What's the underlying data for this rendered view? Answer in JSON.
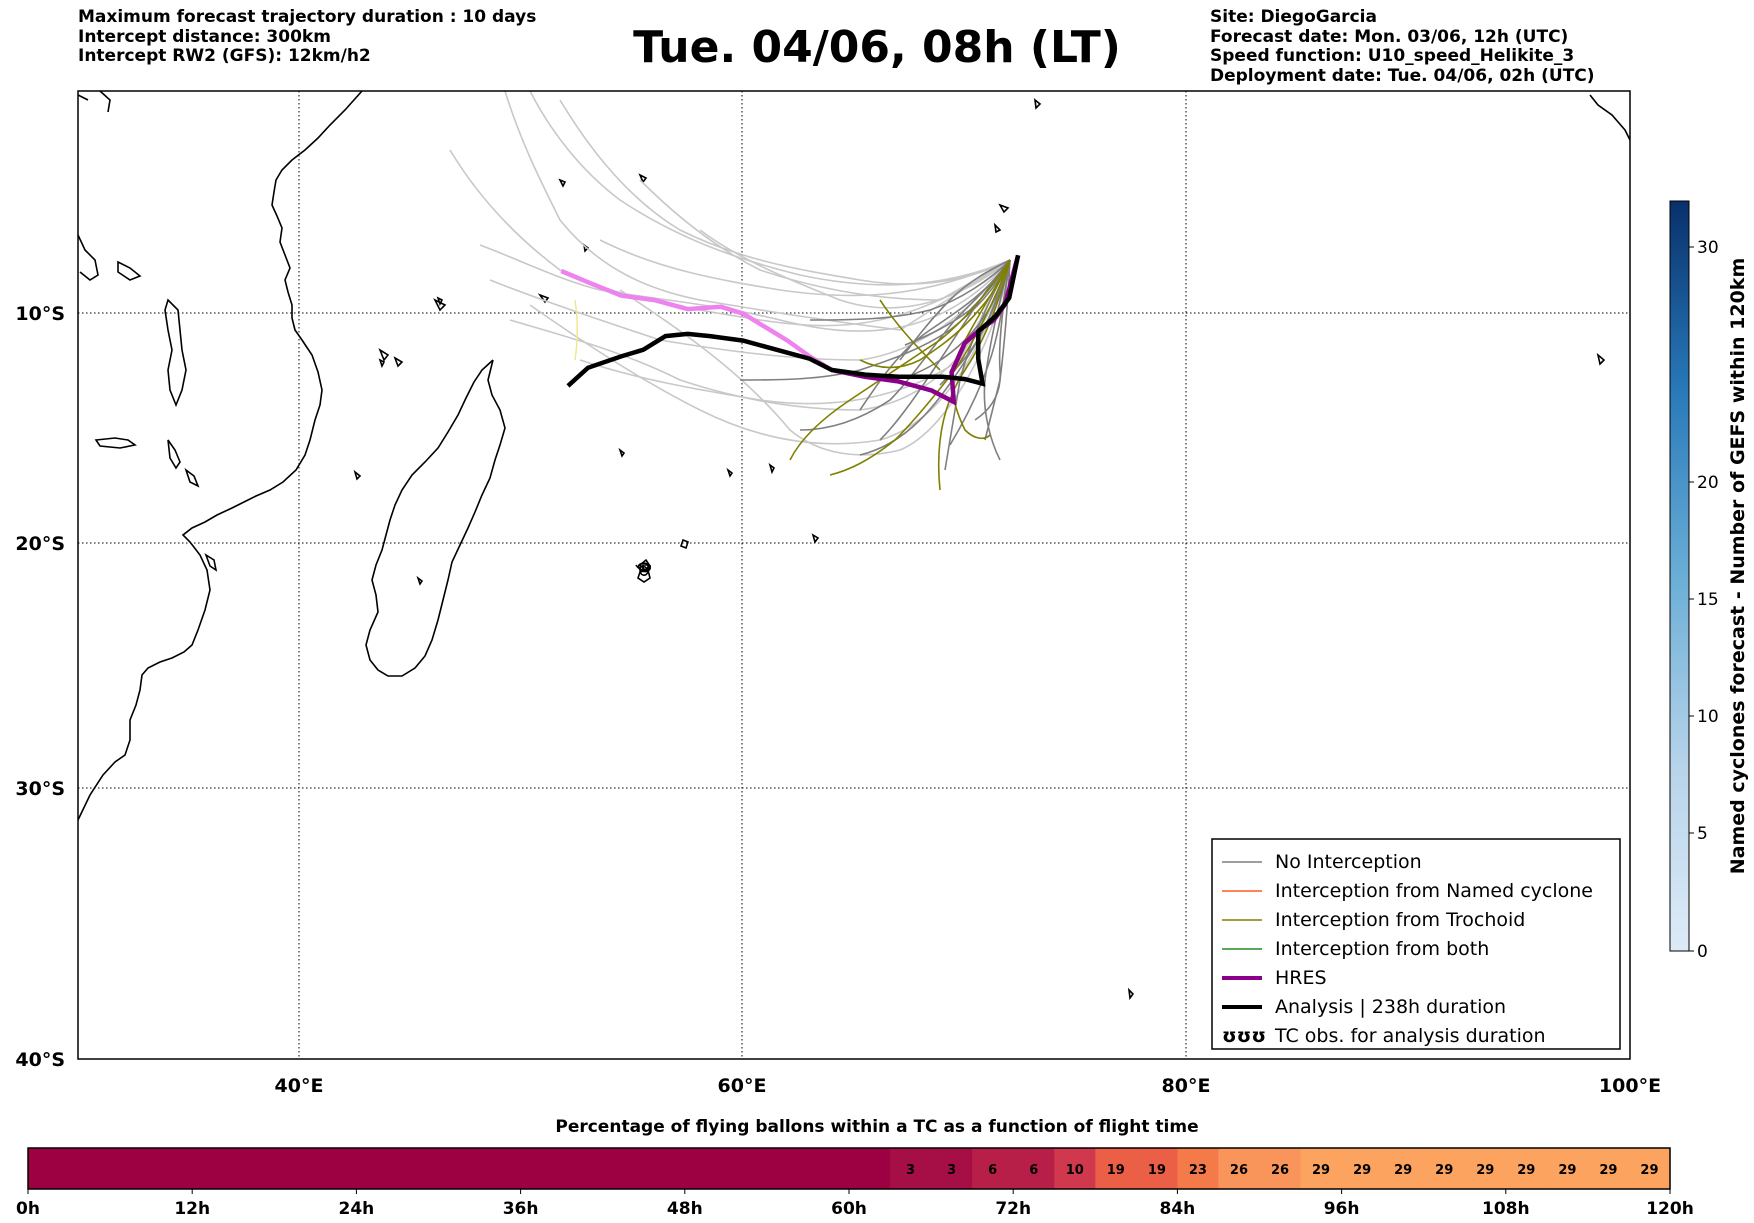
{
  "header_left": {
    "line1": "Maximum forecast trajectory duration : 10 days",
    "line2": "Intercept distance: 300km",
    "line3": "Intercept RW2 (GFS):  12km/h2"
  },
  "title": "Tue. 04/06, 08h (LT)",
  "header_right": {
    "line1": "Site: DiegoGarcia",
    "line2": "Forecast date: Mon. 03/06, 12h (UTC)",
    "line3": "Speed function: U10_speed_Helikite_3",
    "line4": "Deployment date: Tue. 04/06, 02h (UTC)"
  },
  "map": {
    "lon_range": [
      30,
      100
    ],
    "lat_range": [
      0,
      -40
    ],
    "lat_labels": [
      "10°S",
      "20°S",
      "30°S",
      "40°S"
    ],
    "lon_labels": [
      "40°E",
      "60°E",
      "80°E",
      "100°E"
    ]
  },
  "legend": {
    "items": [
      {
        "label": "No Interception",
        "color": "#7f7f7f"
      },
      {
        "label": "Interception from Named cyclone",
        "color": "#ff5a1e"
      },
      {
        "label": "Interception from Trochoid",
        "color": "#808000"
      },
      {
        "label": "Interception from both",
        "color": "#228b22"
      },
      {
        "label": "HRES",
        "color": "#8b008b"
      },
      {
        "label": "Analysis | 238h duration",
        "color": "#000000"
      },
      {
        "label": "TC obs. for analysis duration",
        "symbol": "ʊʊʊ"
      }
    ]
  },
  "colorbar_right": {
    "label": "Named cyclones forecast - Number of GEFS within 120km",
    "ticks": [
      "0",
      "5",
      "10",
      "15",
      "20",
      "30"
    ]
  },
  "colorbar_bottom": {
    "title": "Percentage of flying ballons within a TC as a function of flight time",
    "time_labels": [
      "0h",
      "12h",
      "24h",
      "36h",
      "48h",
      "60h",
      "72h",
      "84h",
      "96h",
      "108h",
      "120h"
    ],
    "cells": [
      {
        "value": "",
        "color": "#9e0142"
      },
      {
        "value": "",
        "color": "#9e0142"
      },
      {
        "value": "",
        "color": "#9e0142"
      },
      {
        "value": "",
        "color": "#9e0142"
      },
      {
        "value": "",
        "color": "#9e0142"
      },
      {
        "value": "",
        "color": "#9e0142"
      },
      {
        "value": "",
        "color": "#9e0142"
      },
      {
        "value": "",
        "color": "#9e0142"
      },
      {
        "value": "",
        "color": "#9e0142"
      },
      {
        "value": "",
        "color": "#9e0142"
      },
      {
        "value": "",
        "color": "#9e0142"
      },
      {
        "value": "",
        "color": "#9e0142"
      },
      {
        "value": "",
        "color": "#9e0142"
      },
      {
        "value": "",
        "color": "#9e0142"
      },
      {
        "value": "",
        "color": "#9e0142"
      },
      {
        "value": "",
        "color": "#9e0142"
      },
      {
        "value": "",
        "color": "#9e0142"
      },
      {
        "value": "",
        "color": "#9e0142"
      },
      {
        "value": "",
        "color": "#9e0142"
      },
      {
        "value": "",
        "color": "#9e0142"
      },
      {
        "value": "",
        "color": "#9e0142"
      },
      {
        "value": "3",
        "color": "#a50f45"
      },
      {
        "value": "3",
        "color": "#a50f45"
      },
      {
        "value": "6",
        "color": "#b81f48"
      },
      {
        "value": "6",
        "color": "#b81f48"
      },
      {
        "value": "10",
        "color": "#cf384d"
      },
      {
        "value": "19",
        "color": "#ea5f45"
      },
      {
        "value": "19",
        "color": "#ea5f45"
      },
      {
        "value": "23",
        "color": "#f47a4a"
      },
      {
        "value": "26",
        "color": "#f9955a"
      },
      {
        "value": "26",
        "color": "#f9955a"
      },
      {
        "value": "29",
        "color": "#fca35f"
      },
      {
        "value": "29",
        "color": "#fca35f"
      },
      {
        "value": "29",
        "color": "#fca35f"
      },
      {
        "value": "29",
        "color": "#fca35f"
      },
      {
        "value": "29",
        "color": "#fca35f"
      },
      {
        "value": "29",
        "color": "#fca35f"
      },
      {
        "value": "29",
        "color": "#fca35f"
      },
      {
        "value": "29",
        "color": "#fca35f"
      },
      {
        "value": "29",
        "color": "#fca35f"
      }
    ]
  },
  "trajectories": {
    "hres": [
      [
        51.8,
        -8.1
      ],
      [
        53,
        -8.6
      ],
      [
        54.5,
        -9.2
      ],
      [
        56,
        -9.4
      ],
      [
        57.5,
        -9.8
      ],
      [
        59,
        -9.7
      ],
      [
        60,
        -10
      ],
      [
        61,
        -10.6
      ],
      [
        62,
        -11.2
      ],
      [
        63,
        -11.9
      ],
      [
        64,
        -12.5
      ],
      [
        65.5,
        -12.8
      ],
      [
        67,
        -13.0
      ],
      [
        68.5,
        -13.4
      ],
      [
        69.5,
        -13.9
      ],
      [
        69.4,
        -12.6
      ],
      [
        70,
        -11.3
      ],
      [
        70.7,
        -10.7
      ],
      [
        71.3,
        -10.3
      ],
      [
        71.8,
        -9.6
      ],
      [
        72,
        -8.9
      ],
      [
        72.4,
        -7.4
      ]
    ],
    "analysis": [
      [
        52.1,
        -13.2
      ],
      [
        53,
        -12.4
      ],
      [
        54.5,
        -11.9
      ],
      [
        55.5,
        -11.6
      ],
      [
        56.5,
        -11.0
      ],
      [
        57.5,
        -10.9
      ],
      [
        58.5,
        -11.0
      ],
      [
        60,
        -11.2
      ],
      [
        61.5,
        -11.6
      ],
      [
        63,
        -12.0
      ],
      [
        64,
        -12.5
      ],
      [
        65.5,
        -12.7
      ],
      [
        67,
        -12.8
      ],
      [
        69,
        -12.8
      ],
      [
        70,
        -12.9
      ],
      [
        70.8,
        -13.1
      ],
      [
        70.6,
        -12.0
      ],
      [
        70.6,
        -10.8
      ],
      [
        71.4,
        -10.1
      ],
      [
        72,
        -9.3
      ],
      [
        72.4,
        -7.4
      ]
    ]
  },
  "colors": {
    "hres": "#8b008b",
    "hres_glow": "#ee82ee",
    "analysis": "#000000",
    "ensemble": "#7f7f7f",
    "ensemble_light": "#c8c8c8",
    "trochoid": "#808000"
  }
}
